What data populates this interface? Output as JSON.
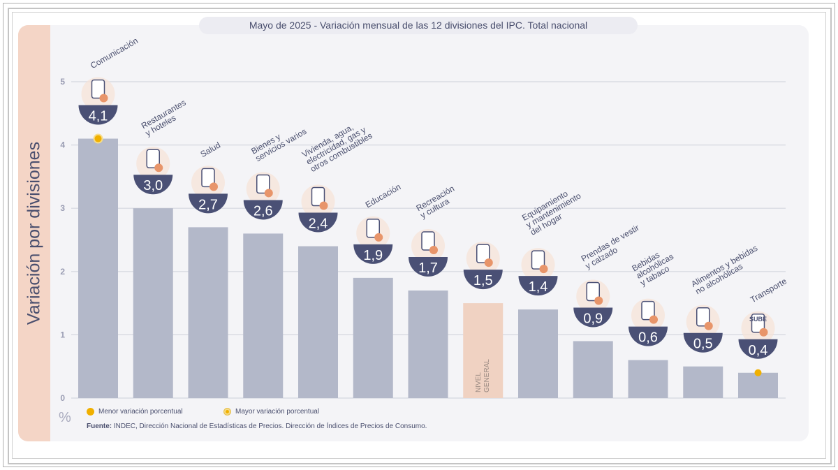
{
  "title": "Mayo de 2025 - Variación mensual de las 12 divisiones del IPC. Total nacional",
  "legend": {
    "min_label": "Menor variación porcentual",
    "max_label": "Mayor variación porcentual"
  },
  "source": {
    "label": "Fuente:",
    "text": "INDEC, Dirección Nacional de Estadísticas de Precios. Dirección de Índices de Precios de Consumo."
  },
  "colors": {
    "bar": "#b3b8c9",
    "highlight_bar": "#f0d2c2",
    "value_badge": "#4a5075",
    "marker": "#f0b000",
    "icon_accent": "#e8956a"
  },
  "chart_data": {
    "type": "bar",
    "ylabel": "Variación por divisiones",
    "yunit": "%",
    "ylim": [
      0,
      5
    ],
    "yticks": [
      "0",
      "1",
      "2",
      "3",
      "4",
      "5"
    ],
    "grid": true,
    "categories": [
      "Comunicación",
      "Restaurantes y hoteles",
      "Salud",
      "Bienes y servicios varios",
      "Vivienda, agua, electricidad, gas y otros combustibles",
      "Educación",
      "Recreación y cultura",
      "NIVEL GENERAL",
      "Equipamiento y mantenimiento del hogar",
      "Prendas de vestir y calzado",
      "Bebidas alcohólicas y tabaco",
      "Alimentos y bebidas no alcohólicas",
      "Transporte"
    ],
    "category_lines": [
      [
        "Comunicación"
      ],
      [
        "Restaurantes",
        "y hoteles"
      ],
      [
        "Salud"
      ],
      [
        "Bienes y",
        "servicios varios"
      ],
      [
        "Vivienda, agua,",
        "electricidad, gas y",
        "otros combustibles"
      ],
      [
        "Educación"
      ],
      [
        "Recreación",
        "y cultura"
      ],
      [
        "NIVEL",
        "GENERAL"
      ],
      [
        "Equipamiento",
        "y mantenimiento",
        "del hogar"
      ],
      [
        "Prendas de vestir",
        "y calzado"
      ],
      [
        "Bebidas",
        "alcohólicas",
        "y tabaco"
      ],
      [
        "Alimentos y bebidas",
        "no alcohólicas"
      ],
      [
        "Transporte"
      ]
    ],
    "values": [
      4.1,
      3.0,
      2.7,
      2.6,
      2.4,
      1.9,
      1.7,
      1.5,
      1.4,
      0.9,
      0.6,
      0.5,
      0.4
    ],
    "value_labels": [
      "4,1",
      "3,0",
      "2,7",
      "2,6",
      "2,4",
      "1,9",
      "1,7",
      "1,5",
      "1,4",
      "0,9",
      "0,6",
      "0,5",
      "0,4"
    ],
    "highlight_category": "NIVEL GENERAL",
    "max_marker_category": "Comunicación",
    "min_marker_category": "Transporte",
    "icons": [
      "smartphone-icon",
      "cutlery-icon",
      "first-aid-icon",
      "comb-scissors-icon",
      "bulb-tools-icon",
      "notebook-icon",
      "beach-umbrella-icon",
      "basket-icon",
      "air-conditioner-icon",
      "tshirt-shoe-icon",
      "wine-icon",
      "chicken-icon",
      "bus-card-icon"
    ],
    "icon_texts": {
      "bus_card": "SUBE"
    }
  }
}
